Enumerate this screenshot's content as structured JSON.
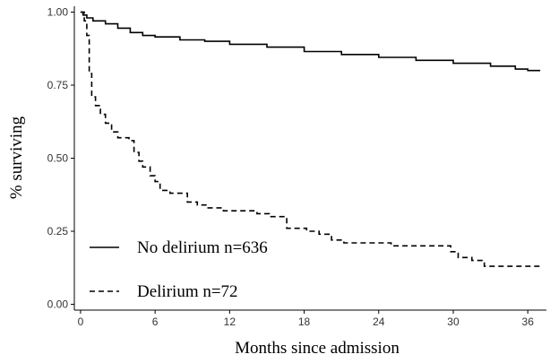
{
  "chart_data": {
    "type": "line",
    "step": true,
    "xlabel": "Months since admission",
    "ylabel": "% surviving",
    "xlim": [
      -0.5,
      37.5
    ],
    "ylim": [
      -0.02,
      1.02
    ],
    "x_ticks": [
      0,
      6,
      12,
      18,
      24,
      30,
      36
    ],
    "x_tick_labels": [
      "0",
      "6",
      "12",
      "18",
      "24",
      "30",
      "36"
    ],
    "y_ticks": [
      0.0,
      0.25,
      0.5,
      0.75,
      1.0
    ],
    "y_tick_labels": [
      "0.00",
      "0.25",
      "0.50",
      "0.75",
      "1.00"
    ],
    "grid": false,
    "legend_position": "bottom-left",
    "series": [
      {
        "name": "No delirium n=636",
        "style": "solid",
        "color": "#000000",
        "x": [
          0,
          0.2,
          0.5,
          1,
          2,
          3,
          4,
          5,
          6,
          8,
          10,
          12,
          15,
          18,
          21,
          24,
          27,
          30,
          33,
          35,
          36,
          37
        ],
        "y": [
          1.0,
          0.99,
          0.98,
          0.97,
          0.96,
          0.945,
          0.93,
          0.92,
          0.915,
          0.905,
          0.9,
          0.89,
          0.88,
          0.865,
          0.855,
          0.845,
          0.835,
          0.825,
          0.815,
          0.805,
          0.8,
          0.8
        ]
      },
      {
        "name": "Delirium n=72",
        "style": "dashed",
        "color": "#000000",
        "x": [
          0,
          0.3,
          0.5,
          0.7,
          0.9,
          1.2,
          1.6,
          2.0,
          2.5,
          3.0,
          3.9,
          4.3,
          4.7,
          5.0,
          5.6,
          6.0,
          6.4,
          7.2,
          8.6,
          9.4,
          10.2,
          11.5,
          13.2,
          14.2,
          15.2,
          16.6,
          18.2,
          19.2,
          20.2,
          21.2,
          23.0,
          25.0,
          27.0,
          29.8,
          30.4,
          31.5,
          32.5,
          35.5,
          37.0
        ],
        "y": [
          1.0,
          0.97,
          0.92,
          0.79,
          0.71,
          0.68,
          0.65,
          0.62,
          0.59,
          0.57,
          0.56,
          0.52,
          0.49,
          0.47,
          0.44,
          0.42,
          0.39,
          0.38,
          0.35,
          0.34,
          0.33,
          0.32,
          0.32,
          0.31,
          0.3,
          0.26,
          0.25,
          0.24,
          0.22,
          0.21,
          0.21,
          0.2,
          0.2,
          0.18,
          0.16,
          0.15,
          0.13,
          0.13,
          0.13
        ]
      }
    ]
  }
}
